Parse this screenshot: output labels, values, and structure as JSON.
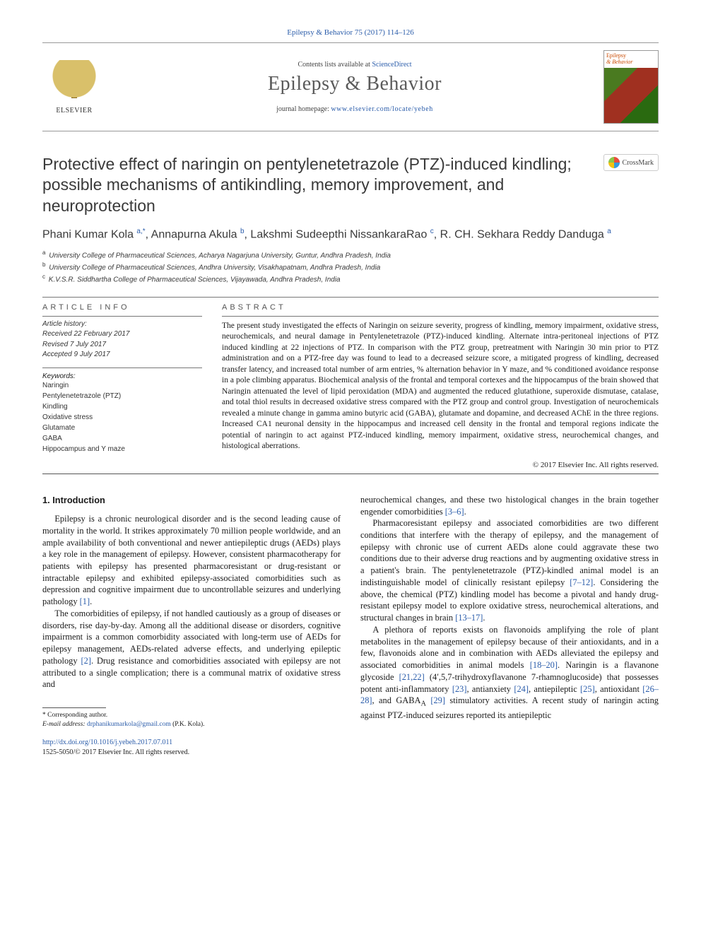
{
  "journal_ref": "Epilepsy & Behavior 75 (2017) 114–126",
  "masthead": {
    "elsevier": "ELSEVIER",
    "contents_line_prefix": "Contents lists available at ",
    "contents_link": "ScienceDirect",
    "journal_name": "Epilepsy & Behavior",
    "homepage_prefix": "journal homepage: ",
    "homepage_link": "www.elsevier.com/locate/yebeh",
    "cover_title_a": "Epilepsy",
    "cover_title_b": "& Behavior"
  },
  "crossmark": "CrossMark",
  "article_title": "Protective effect of naringin on pentylenetetrazole (PTZ)-induced kindling; possible mechanisms of antikindling, memory improvement, and neuroprotection",
  "authors_html": "Phani Kumar Kola <sup>a,*</sup>, Annapurna Akula <sup>b</sup>, Lakshmi Sudeepthi NissankaraRao <sup>c</sup>, R. CH. Sekhara Reddy Danduga <sup>a</sup>",
  "affils": [
    {
      "sup": "a",
      "text": "University College of Pharmaceutical Sciences, Acharya Nagarjuna University, Guntur, Andhra Pradesh, India"
    },
    {
      "sup": "b",
      "text": "University College of Pharmaceutical Sciences, Andhra University, Visakhapatnam, Andhra Pradesh, India"
    },
    {
      "sup": "c",
      "text": "K.V.S.R. Siddhartha College of Pharmaceutical Sciences, Vijayawada, Andhra Pradesh, India"
    }
  ],
  "info": {
    "head": "article info",
    "history_label": "Article history:",
    "received": "Received 22 February 2017",
    "revised": "Revised 7 July 2017",
    "accepted": "Accepted 9 July 2017",
    "keywords_label": "Keywords:",
    "keywords": [
      "Naringin",
      "Pentylenetetrazole (PTZ)",
      "Kindling",
      "Oxidative stress",
      "Glutamate",
      "GABA",
      "Hippocampus and Y maze"
    ]
  },
  "abstract": {
    "head": "abstract",
    "text": "The present study investigated the effects of Naringin on seizure severity, progress of kindling, memory impairment, oxidative stress, neurochemicals, and neural damage in Pentylenetetrazole (PTZ)-induced kindling. Alternate intra-peritoneal injections of PTZ induced kindling at 22 injections of PTZ. In comparison with the PTZ group, pretreatment with Naringin 30 min prior to PTZ administration and on a PTZ-free day was found to lead to a decreased seizure score, a mitigated progress of kindling, decreased transfer latency, and increased total number of arm entries, % alternation behavior in Y maze, and % conditioned avoidance response in a pole climbing apparatus. Biochemical analysis of the frontal and temporal cortexes and the hippocampus of the brain showed that Naringin attenuated the level of lipid peroxidation (MDA) and augmented the reduced glutathione, superoxide dismutase, catalase, and total thiol results in decreased oxidative stress compared with the PTZ group and control group. Investigation of neurochemicals revealed a minute change in gamma amino butyric acid (GABA), glutamate and dopamine, and decreased AChE in the three regions. Increased CA1 neuronal density in the hippocampus and increased cell density in the frontal and temporal regions indicate the potential of naringin to act against PTZ-induced kindling, memory impairment, oxidative stress, neurochemical changes, and histological aberrations.",
    "copyright": "© 2017 Elsevier Inc. All rights reserved."
  },
  "intro": {
    "heading": "1. Introduction",
    "p1": "Epilepsy is a chronic neurological disorder and is the second leading cause of mortality in the world. It strikes approximately 70 million people worldwide, and an ample availability of both conventional and newer antiepileptic drugs (AEDs) plays a key role in the management of epilepsy. However, consistent pharmacotherapy for patients with epilepsy has presented pharmacoresistant or drug-resistant or intractable epilepsy and exhibited epilepsy-associated comorbidities such as depression and cognitive impairment due to uncontrollable seizures and underlying pathology ",
    "r1": "[1]",
    "p1b": ".",
    "p2": "The comorbidities of epilepsy, if not handled cautiously as a group of diseases or disorders, rise day-by-day. Among all the additional disease or disorders, cognitive impairment is a common comorbidity associated with long-term use of AEDs for epilepsy management, AEDs-related adverse effects, and underlying epileptic pathology ",
    "r2": "[2]",
    "p2b": ". Drug resistance and comorbidities associated with epilepsy are not attributed to a single complication; there is a communal matrix of oxidative stress and",
    "p3a": "neurochemical changes, and these two histological changes in the brain together engender comorbidities ",
    "r3": "[3–6]",
    "p3b": ".",
    "p4a": "Pharmacoresistant epilepsy and associated comorbidities are two different conditions that interfere with the therapy of epilepsy, and the management of epilepsy with chronic use of current AEDs alone could aggravate these two conditions due to their adverse drug reactions and by augmenting oxidative stress in a patient's brain. The pentylenetetrazole (PTZ)-kindled animal model is an indistinguishable model of clinically resistant epilepsy ",
    "r4": "[7–12]",
    "p4b": ". Considering the above, the chemical (PTZ) kindling model has become a pivotal and handy drug-resistant epilepsy model to explore oxidative stress, neurochemical alterations, and structural changes in brain ",
    "r5": "[13–17]",
    "p4c": ".",
    "p5a": "A plethora of reports exists on flavonoids amplifying the role of plant metabolites in the management of epilepsy because of their antioxidants, and in a few, flavonoids alone and in combination with AEDs alleviated the epilepsy and associated comorbidities in animal models ",
    "r6": "[18–20]",
    "p5b": ". Naringin is a flavanone glycoside ",
    "r7": "[21,22]",
    "p5c": " (4′,5,7-trihydroxyflavanone 7-rhamnoglucoside) that possesses potent anti-inflammatory ",
    "r8": "[23]",
    "p5d": ", antianxiety ",
    "r9": "[24]",
    "p5e": ", antiepileptic ",
    "r10": "[25]",
    "p5f": ", antioxidant ",
    "r11": "[26–28]",
    "p5g": ", and GABA",
    "p5g_sub": "A",
    "p5h": " ",
    "r12": "[29]",
    "p5i": " stimulatory activities. A recent study of naringin acting against PTZ-induced seizures reported its antiepileptic"
  },
  "footnote": {
    "corr": "* Corresponding author.",
    "email_label": "E-mail address: ",
    "email": "drphanikumarkola@gmail.com",
    "name": "(P.K. Kola)."
  },
  "bottom": {
    "doi": "http://dx.doi.org/10.1016/j.yebeh.2017.07.011",
    "issn": "1525-5050/© 2017 Elsevier Inc. All rights reserved."
  },
  "style": {
    "link_color": "#2a5caa",
    "text_color": "#1a1a1a",
    "hr_color": "#777777"
  }
}
